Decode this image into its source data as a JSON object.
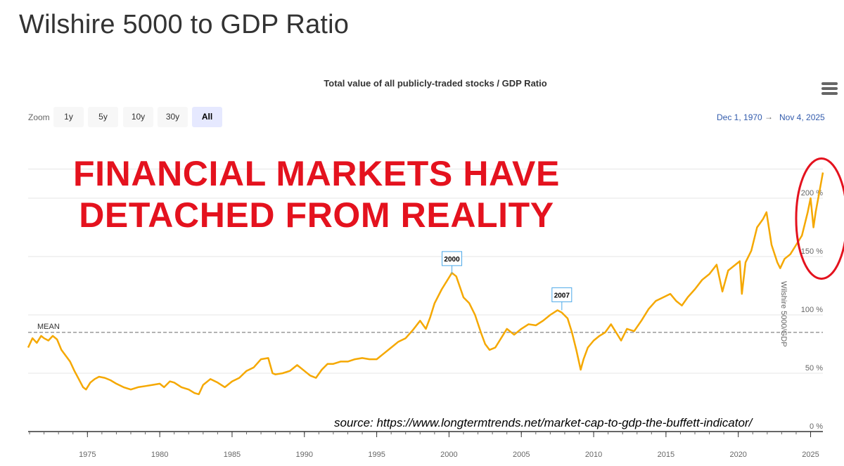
{
  "page_title": "Wilshire 5000 to GDP Ratio",
  "chart_subtitle": "Total value of all publicly-traded stocks / GDP Ratio",
  "menu_icon": "hamburger-menu-icon",
  "zoom": {
    "label": "Zoom",
    "buttons": [
      "1y",
      "5y",
      "10y",
      "30y",
      "All"
    ],
    "active": "All"
  },
  "range": {
    "from": "Dec 1, 1970",
    "arrow": "→",
    "to": "Nov 4, 2025"
  },
  "headline": {
    "line1": "FINANCIAL MARKETS HAVE",
    "line2": "DETACHED FROM REALITY"
  },
  "source": "source: https://www.longtermtrends.net/market-cap-to-gdp-the-buffett-indicator/",
  "colors": {
    "series": "#f5a800",
    "headline": "#e4121e",
    "mean_line": "#999999",
    "flag_border": "#4aa8e8",
    "highlight_ellipse": "#e4121e",
    "grid": "#e6e6e6"
  },
  "chart_data": {
    "type": "line",
    "y_axis_title": "Wilshire 5000/GDP",
    "y_ticks": [
      "0 %",
      "50 %",
      "100 %",
      "150 %",
      "200 %"
    ],
    "y_tick_values": [
      0,
      50,
      100,
      150,
      200
    ],
    "ylim": [
      0,
      225
    ],
    "x_ticks": [
      "1975",
      "1980",
      "1985",
      "1990",
      "1995",
      "2000",
      "2005",
      "2010",
      "2015",
      "2020",
      "2025"
    ],
    "x_tick_values": [
      1975,
      1980,
      1985,
      1990,
      1995,
      2000,
      2005,
      2010,
      2015,
      2020,
      2025
    ],
    "xlim": [
      1970.9,
      2025.85
    ],
    "mean": {
      "label": "MEAN",
      "value": 85
    },
    "flags": [
      {
        "label": "2000",
        "x": 2000.2,
        "y": 135
      },
      {
        "label": "2007",
        "x": 2007.8,
        "y": 104
      }
    ],
    "highlight": {
      "x_from": 2024.0,
      "x_to": 2027.5,
      "y_from": 140,
      "y_to": 225
    },
    "grid": true,
    "legend": "none",
    "series": [
      {
        "x": [
          1970.9,
          1971.2,
          1971.5,
          1971.8,
          1972.0,
          1972.3,
          1972.6,
          1972.9,
          1973.2,
          1973.5,
          1973.8,
          1974.1,
          1974.4,
          1974.7,
          1974.9,
          1975.2,
          1975.5,
          1975.8,
          1976.2,
          1976.6,
          1977.0,
          1977.5,
          1978.0,
          1978.5,
          1979.0,
          1979.5,
          1980.0,
          1980.3,
          1980.7,
          1981.0,
          1981.5,
          1982.0,
          1982.4,
          1982.7,
          1983.0,
          1983.5,
          1984.0,
          1984.5,
          1985.0,
          1985.5,
          1986.0,
          1986.5,
          1987.0,
          1987.5,
          1987.8,
          1988.0,
          1988.5,
          1989.0,
          1989.5,
          1990.0,
          1990.4,
          1990.8,
          1991.2,
          1991.6,
          1992.0,
          1992.5,
          1993.0,
          1993.5,
          1994.0,
          1994.5,
          1995.0,
          1995.5,
          1996.0,
          1996.5,
          1997.0,
          1997.5,
          1998.0,
          1998.4,
          1998.7,
          1999.0,
          1999.5,
          2000.0,
          2000.2,
          2000.5,
          2001.0,
          2001.4,
          2001.8,
          2002.2,
          2002.5,
          2002.8,
          2003.2,
          2003.5,
          2004.0,
          2004.5,
          2005.0,
          2005.5,
          2006.0,
          2006.5,
          2007.0,
          2007.5,
          2007.8,
          2008.2,
          2008.5,
          2008.8,
          2009.1,
          2009.3,
          2009.6,
          2010.0,
          2010.4,
          2010.8,
          2011.2,
          2011.6,
          2011.9,
          2012.3,
          2012.8,
          2013.3,
          2013.8,
          2014.3,
          2014.8,
          2015.3,
          2015.7,
          2016.1,
          2016.5,
          2017.0,
          2017.5,
          2018.0,
          2018.5,
          2018.9,
          2019.3,
          2019.8,
          2020.1,
          2020.25,
          2020.5,
          2020.9,
          2021.3,
          2021.7,
          2021.95,
          2022.3,
          2022.7,
          2022.9,
          2023.2,
          2023.6,
          2024.0,
          2024.4,
          2024.8,
          2025.0,
          2025.2,
          2025.35,
          2025.6,
          2025.85
        ],
        "y": [
          72,
          80,
          76,
          82,
          80,
          78,
          82,
          79,
          70,
          65,
          60,
          52,
          45,
          38,
          36,
          42,
          45,
          47,
          46,
          44,
          41,
          38,
          36,
          38,
          39,
          40,
          41,
          38,
          43,
          42,
          38,
          36,
          33,
          32,
          40,
          45,
          42,
          38,
          43,
          46,
          52,
          55,
          62,
          63,
          50,
          49,
          50,
          52,
          57,
          52,
          48,
          46,
          53,
          58,
          58,
          60,
          60,
          62,
          63,
          62,
          62,
          67,
          72,
          77,
          80,
          87,
          95,
          88,
          98,
          110,
          122,
          132,
          136,
          133,
          115,
          110,
          100,
          85,
          75,
          70,
          72,
          78,
          88,
          83,
          88,
          92,
          91,
          95,
          100,
          104,
          102,
          97,
          85,
          70,
          53,
          62,
          72,
          78,
          82,
          85,
          92,
          84,
          78,
          88,
          86,
          95,
          105,
          112,
          115,
          118,
          112,
          108,
          115,
          122,
          130,
          135,
          143,
          120,
          138,
          143,
          146,
          118,
          145,
          155,
          175,
          182,
          188,
          160,
          145,
          140,
          148,
          152,
          160,
          168,
          188,
          200,
          175,
          188,
          205,
          222
        ]
      }
    ]
  }
}
